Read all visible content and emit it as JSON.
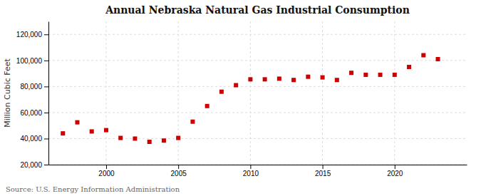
{
  "chart_data": {
    "type": "scatter",
    "title": "Annual Nebraska Natural Gas Industrial Consumption",
    "y_label": "Million Cubic Feet",
    "annotations": [
      "Source: U.S. Energy Information Administration"
    ],
    "x": [
      1997,
      1998,
      1999,
      2000,
      2001,
      2002,
      2003,
      2004,
      2005,
      2006,
      2007,
      2008,
      2009,
      2010,
      2011,
      2012,
      2013,
      2014,
      2015,
      2016,
      2017,
      2018,
      2019,
      2020,
      2021,
      2022,
      2023
    ],
    "values": [
      44000,
      52500,
      45500,
      46500,
      40500,
      40000,
      37500,
      38500,
      40500,
      53000,
      65000,
      76000,
      81000,
      85500,
      85500,
      86000,
      85000,
      87500,
      87000,
      85000,
      90500,
      89000,
      89000,
      89000,
      95000,
      104000,
      101000
    ],
    "color": "#cc0000",
    "marker": "square",
    "xlim": [
      1996,
      2025
    ],
    "xticks": [
      2000,
      2005,
      2010,
      2015,
      2020
    ],
    "ylim": [
      20000,
      130000
    ],
    "yticks": [
      {
        "value": 20000,
        "label": "20,000"
      },
      {
        "value": 40000,
        "label": "40,000"
      },
      {
        "value": 60000,
        "label": "60,000"
      },
      {
        "value": 80000,
        "label": "80,000"
      },
      {
        "value": 100000,
        "label": "100,000"
      },
      {
        "value": 120000,
        "label": "120,000"
      }
    ],
    "grid": true
  }
}
